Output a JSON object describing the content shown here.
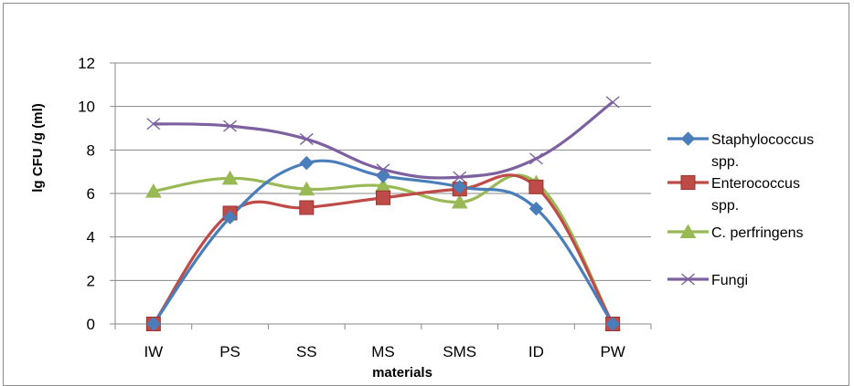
{
  "chart_data": {
    "type": "line",
    "title": "",
    "xlabel": "materials",
    "ylabel": "lg CFU /g (ml)",
    "categories": [
      "IW",
      "PS",
      "SS",
      "MS",
      "SMS",
      "ID",
      "PW"
    ],
    "ylim": [
      0,
      12
    ],
    "yticks": [
      0,
      2,
      4,
      6,
      8,
      10,
      12
    ],
    "grid": true,
    "legend_position": "right",
    "smooth": true,
    "series": [
      {
        "name": "Staphylococcus spp.",
        "legend_lines": [
          "Staphylococcus",
          "spp."
        ],
        "color": "#4a7ebb",
        "marker": "diamond",
        "values": [
          0,
          4.9,
          7.4,
          6.8,
          6.3,
          5.3,
          0
        ]
      },
      {
        "name": "Enterococcus spp.",
        "legend_lines": [
          "Enterococcus",
          "spp."
        ],
        "color": "#be4b48",
        "marker": "square",
        "values": [
          0,
          5.1,
          5.35,
          5.8,
          6.2,
          6.3,
          0
        ]
      },
      {
        "name": "C. perfringens",
        "legend_lines": [
          "C. perfringens"
        ],
        "color": "#98b954",
        "marker": "triangle",
        "values": [
          6.1,
          6.7,
          6.2,
          6.35,
          5.6,
          6.5,
          0
        ]
      },
      {
        "name": "Fungi",
        "legend_lines": [
          "Fungi"
        ],
        "color": "#7d60a0",
        "marker": "x",
        "values": [
          9.2,
          9.1,
          8.5,
          7.1,
          6.75,
          7.6,
          10.2
        ]
      }
    ]
  }
}
